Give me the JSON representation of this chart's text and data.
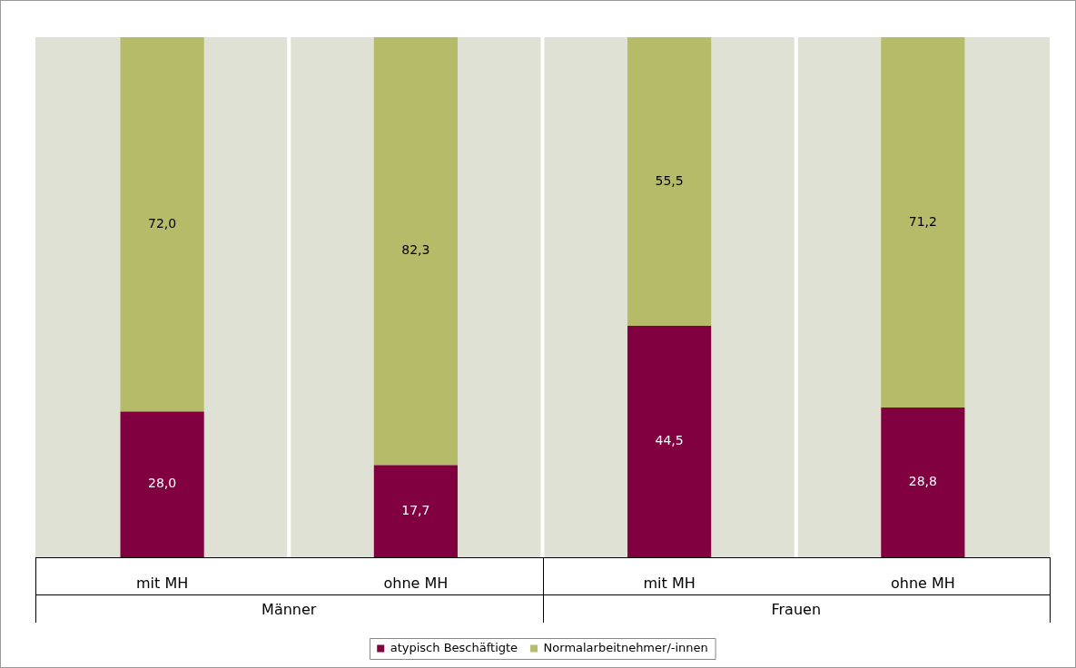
{
  "chart_data": {
    "type": "bar",
    "stacked": true,
    "categories": [
      "mit MH",
      "ohne MH",
      "mit MH",
      "ohne MH"
    ],
    "series": [
      {
        "name": "atypisch Beschäftigte",
        "color": "#800040",
        "values": [
          28.0,
          17.7,
          44.5,
          28.8
        ],
        "value_labels": [
          "28,0",
          "17,7",
          "44,5",
          "28,8"
        ]
      },
      {
        "name": "Normalarbeitnehmer/-innen",
        "color": "#b5bb68",
        "values": [
          72.0,
          82.3,
          55.5,
          71.2
        ],
        "value_labels": [
          "72,0",
          "82,3",
          "55,5",
          "71,2"
        ]
      }
    ],
    "annotations": [
      "Männer",
      "Frauen"
    ],
    "legend": "bottom"
  }
}
